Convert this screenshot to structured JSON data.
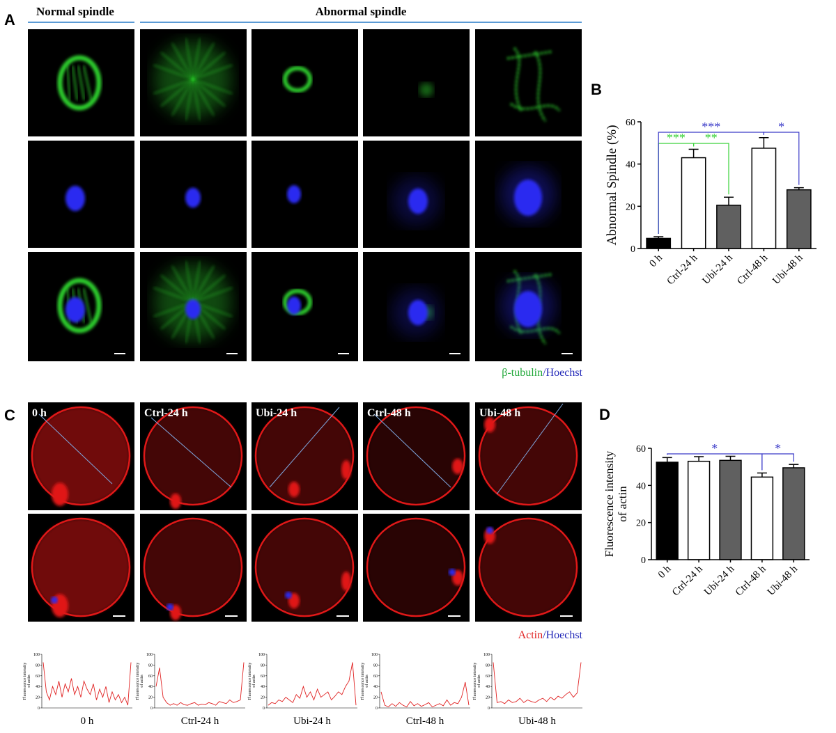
{
  "panels": {
    "A": {
      "label": "A",
      "header_left": "Normal spindle",
      "header_right": "Abnormal spindle",
      "stain_legend": [
        {
          "text": "β-tubulin",
          "color": "#22a83a"
        },
        {
          "text": "/",
          "color": "#2228b8"
        },
        {
          "text": "Hoechst",
          "color": "#2228b8"
        }
      ]
    },
    "C": {
      "label": "C",
      "image_labels": [
        "0 h",
        "Ctrl-24 h",
        "Ubi-24 h",
        "Ctrl-48 h",
        "Ubi-48 h"
      ],
      "stain_legend": [
        {
          "text": "Actin",
          "color": "#e02020"
        },
        {
          "text": "/",
          "color": "#2228b8"
        },
        {
          "text": "Hoechst",
          "color": "#2228b8"
        }
      ]
    }
  },
  "chart_data": [
    {
      "type": "bar",
      "panel_label": "B",
      "ylabel": [
        "Abnormal Spindle (%)"
      ],
      "categories": [
        "0 h",
        "Ctrl-24 h",
        "Ubi-24 h",
        "Ctrl-48 h",
        "Ubi-48 h"
      ],
      "values": [
        4.8,
        43,
        20.5,
        47.5,
        27.8
      ],
      "errors": [
        0.8,
        4,
        3.8,
        5,
        1
      ],
      "colors": [
        "#000000",
        "#ffffff",
        "#606060",
        "#ffffff",
        "#606060"
      ],
      "ylim": [
        0,
        60
      ],
      "yticks": [
        0,
        20,
        40,
        60
      ],
      "annotations": [
        {
          "text": "***",
          "color": "#3ad23a"
        },
        {
          "text": "**",
          "color": "#3ad23a"
        },
        {
          "text": "***",
          "color": "#3a3ac8"
        },
        {
          "text": "*",
          "color": "#3a3ac8"
        }
      ]
    },
    {
      "type": "bar",
      "panel_label": "D",
      "ylabel": [
        "Fluorescence intensity",
        "of actin"
      ],
      "categories": [
        "0 h",
        "Ctrl-24 h",
        "Ubi-24 h",
        "Ctrl-48 h",
        "Ubi-48 h"
      ],
      "values": [
        52.5,
        53,
        53.5,
        44.5,
        49.5
      ],
      "errors": [
        2.5,
        2.5,
        2.2,
        2.2,
        1.8
      ],
      "colors": [
        "#000000",
        "#ffffff",
        "#606060",
        "#ffffff",
        "#606060"
      ],
      "ylim": [
        0,
        60
      ],
      "yticks": [
        0,
        20,
        40,
        60
      ],
      "annotations": [
        {
          "text": "*",
          "color": "#3a3ac8"
        },
        {
          "text": "*",
          "color": "#3a3ac8"
        }
      ]
    },
    {
      "type": "line",
      "xlabel": "0 h",
      "ylabel": [
        "Fluorescence intensity",
        "of actin"
      ],
      "color": "#e02020",
      "ylim": [
        0,
        100
      ],
      "yticks": [
        0,
        20,
        40,
        60,
        80,
        100
      ],
      "values": [
        85,
        30,
        15,
        40,
        25,
        50,
        20,
        45,
        30,
        55,
        25,
        40,
        20,
        50,
        35,
        25,
        45,
        15,
        35,
        20,
        40,
        10,
        30,
        15,
        25,
        10,
        20,
        5,
        85
      ]
    },
    {
      "type": "line",
      "xlabel": "Ctrl-24 h",
      "ylabel": [
        "Fluorescence intensity",
        "of actin"
      ],
      "color": "#e02020",
      "ylim": [
        0,
        100
      ],
      "yticks": [
        0,
        20,
        40,
        60,
        80,
        100
      ],
      "values": [
        40,
        75,
        20,
        10,
        5,
        8,
        5,
        10,
        6,
        5,
        8,
        10,
        5,
        7,
        6,
        10,
        8,
        5,
        12,
        10,
        8,
        15,
        10,
        12,
        15,
        85
      ]
    },
    {
      "type": "line",
      "xlabel": "Ubi-24 h",
      "ylabel": [
        "Fluorescence intensity",
        "of actin"
      ],
      "color": "#e02020",
      "ylim": [
        0,
        100
      ],
      "yticks": [
        0,
        20,
        40,
        60,
        80,
        100
      ],
      "values": [
        5,
        10,
        8,
        15,
        12,
        20,
        15,
        10,
        25,
        18,
        40,
        20,
        30,
        15,
        35,
        20,
        25,
        30,
        15,
        22,
        30,
        25,
        40,
        50,
        85,
        5
      ]
    },
    {
      "type": "line",
      "xlabel": "Ctrl-48 h",
      "ylabel": [
        "Fluorescence intensity",
        "of actin"
      ],
      "color": "#e02020",
      "ylim": [
        0,
        100
      ],
      "yticks": [
        0,
        20,
        40,
        60,
        80,
        100
      ],
      "values": [
        30,
        5,
        2,
        8,
        3,
        10,
        5,
        2,
        12,
        4,
        8,
        3,
        6,
        10,
        2,
        5,
        8,
        4,
        15,
        5,
        10,
        8,
        20,
        48,
        5
      ]
    },
    {
      "type": "line",
      "xlabel": "Ubi-48 h",
      "ylabel": [
        "Fluorescence intensity",
        "of actin"
      ],
      "color": "#e02020",
      "ylim": [
        0,
        100
      ],
      "yticks": [
        0,
        20,
        40,
        60,
        80,
        100
      ],
      "values": [
        85,
        10,
        12,
        8,
        15,
        10,
        12,
        18,
        10,
        15,
        12,
        10,
        15,
        18,
        12,
        20,
        15,
        22,
        18,
        25,
        30,
        20,
        28,
        85
      ]
    }
  ]
}
